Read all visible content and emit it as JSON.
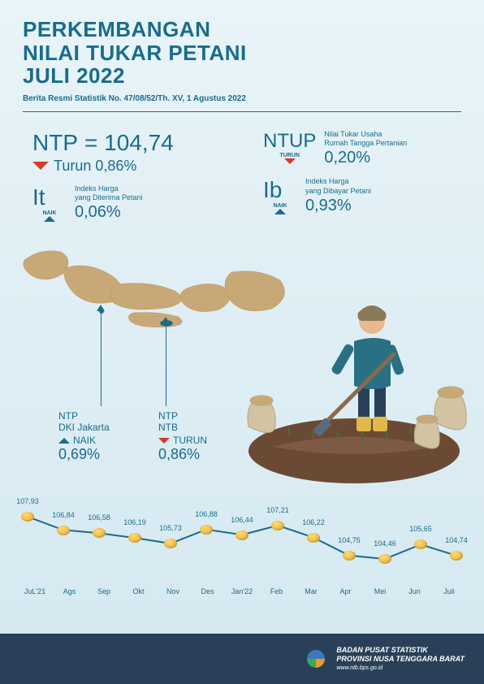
{
  "header": {
    "title_line1": "PERKEMBANGAN",
    "title_line2": "NILAI TUKAR PETANI",
    "title_line3": "JULI 2022",
    "subtitle": "Berita Resmi Statistik No. 47/08/52/Th. XV, 1 Agustus 2022"
  },
  "metrics": {
    "ntp": {
      "label": "NTP",
      "equals": "= 104,74",
      "dir": "down",
      "dir_label": "Turun",
      "pct": "0,86%"
    },
    "ntup": {
      "label": "NTUP",
      "desc_l1": "Nilai Tukar Usaha",
      "desc_l2": "Rumah Tangga Pertanian",
      "dir": "down",
      "dir_label": "TURUN",
      "pct": "0,20%"
    },
    "it": {
      "label": "It",
      "desc_l1": "Indeks Harga",
      "desc_l2": "yang Diterima Petani",
      "dir": "up",
      "dir_label": "NAIK",
      "pct": "0,06%"
    },
    "ib": {
      "label": "Ib",
      "desc_l1": "Indeks Harga",
      "desc_l2": "yang Dibayar Petani",
      "dir": "up",
      "dir_label": "NAIK",
      "pct": "0,93%"
    }
  },
  "callouts": {
    "jakarta": {
      "l1": "NTP",
      "l2": "DKI Jakarta",
      "dir": "up",
      "dir_label": "NAIK",
      "pct": "0,69%"
    },
    "ntb": {
      "l1": "NTP",
      "l2": "NTB",
      "dir": "down",
      "dir_label": "TURUN",
      "pct": "0,86%"
    }
  },
  "chart": {
    "type": "line",
    "color": "#1a6b8c",
    "point_fill": "#f0b840",
    "months": [
      "JuL'21",
      "Ags",
      "Sep",
      "Okt",
      "Nov",
      "Des",
      "Jan'22",
      "Feb",
      "Mar",
      "Apr",
      "Mei",
      "Jun",
      "Juli"
    ],
    "values": [
      107.93,
      106.84,
      106.58,
      106.19,
      105.73,
      106.88,
      106.44,
      107.21,
      106.22,
      104.75,
      104.46,
      105.65,
      104.74
    ],
    "labels": [
      "107,93",
      "106,84",
      "106,58",
      "106,19",
      "105,73",
      "106,88",
      "106,44",
      "107,21",
      "106,22",
      "104,75",
      "104,46",
      "105,65",
      "104,74"
    ],
    "ymin": 104.0,
    "ymax": 108.0
  },
  "footer": {
    "org1": "BADAN PUSAT STATISTIK",
    "org2": "PROVINSI NUSA TENGGARA BARAT",
    "url": "www.ntb.bps.go.id"
  },
  "colors": {
    "primary": "#1a6b8c",
    "down": "#d43a2a",
    "bg_top": "#e8f4f8",
    "footer_bg": "#2a4058",
    "map_fill": "#c9a878"
  }
}
